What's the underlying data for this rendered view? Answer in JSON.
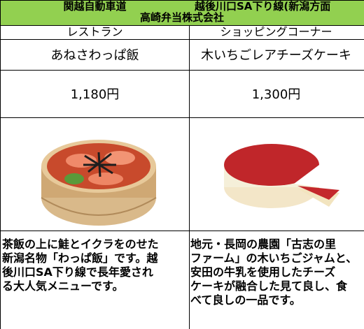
{
  "header": {
    "road": "関越自動車道",
    "location": "越後川口SA下り線(新潟方面",
    "company": "高崎弁当株式会社"
  },
  "columns": [
    {
      "category": "レストラン",
      "name": "あねさわっぱ飯",
      "price": "1,180円",
      "description": [
        "茶飯の上に鮭とイクラをのせた",
        "新潟名物「わっぱ飯」です。越",
        "後川口SA下り線で長年愛され",
        "る大人気メニューです。"
      ]
    },
    {
      "category": "ショッピングコーナー",
      "name": "木いちごレアチーズケーキ",
      "price": "1,300円",
      "description": [
        "地元・長岡の農園「古志の里",
        "ファーム」の木いちごジャムと、",
        "安田の牛乳を使用したチーズ",
        "ケーキが融合した見て良し、食",
        "べて良しの一品です。"
      ]
    }
  ]
}
